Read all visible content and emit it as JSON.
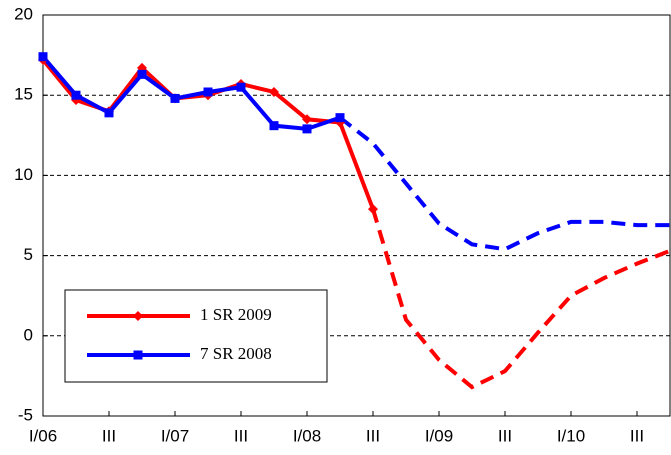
{
  "chart_data": {
    "type": "line",
    "x": [
      0,
      1,
      2,
      3,
      4,
      5,
      6,
      7,
      8,
      9,
      10,
      11,
      12,
      13,
      14,
      15,
      16,
      17,
      18,
      19
    ],
    "xlim": [
      0,
      19
    ],
    "xticks": [
      {
        "value": 0,
        "label": "I/06"
      },
      {
        "value": 2,
        "label": "III"
      },
      {
        "value": 4,
        "label": "I/07"
      },
      {
        "value": 6,
        "label": "III"
      },
      {
        "value": 8,
        "label": "I/08"
      },
      {
        "value": 10,
        "label": "III"
      },
      {
        "value": 12,
        "label": "I/09"
      },
      {
        "value": 14,
        "label": "III"
      },
      {
        "value": 16,
        "label": "I/10"
      },
      {
        "value": 18,
        "label": "III"
      }
    ],
    "ylim": [
      -5,
      20
    ],
    "yticks": [
      -5,
      0,
      5,
      10,
      15,
      20
    ],
    "grid": true,
    "legend": "lower-left",
    "series": [
      {
        "name": "1 SR 2009",
        "color": "#ff0000",
        "marker": "diamond",
        "dash_from": 10,
        "values": [
          17.2,
          14.7,
          14.0,
          16.7,
          14.8,
          15.0,
          15.7,
          15.2,
          13.5,
          13.3,
          7.9,
          1.0,
          -1.5,
          -3.2,
          -2.2,
          0.2,
          2.5,
          3.6,
          4.5,
          5.3
        ]
      },
      {
        "name": "7 SR 2008",
        "color": "#0000ff",
        "marker": "square",
        "dash_from": 9,
        "values": [
          17.4,
          15.0,
          13.9,
          16.3,
          14.8,
          15.2,
          15.5,
          13.1,
          12.9,
          13.6,
          12.0,
          9.5,
          7.0,
          5.7,
          5.4,
          6.4,
          7.1,
          7.1,
          6.9,
          6.9
        ]
      }
    ]
  }
}
